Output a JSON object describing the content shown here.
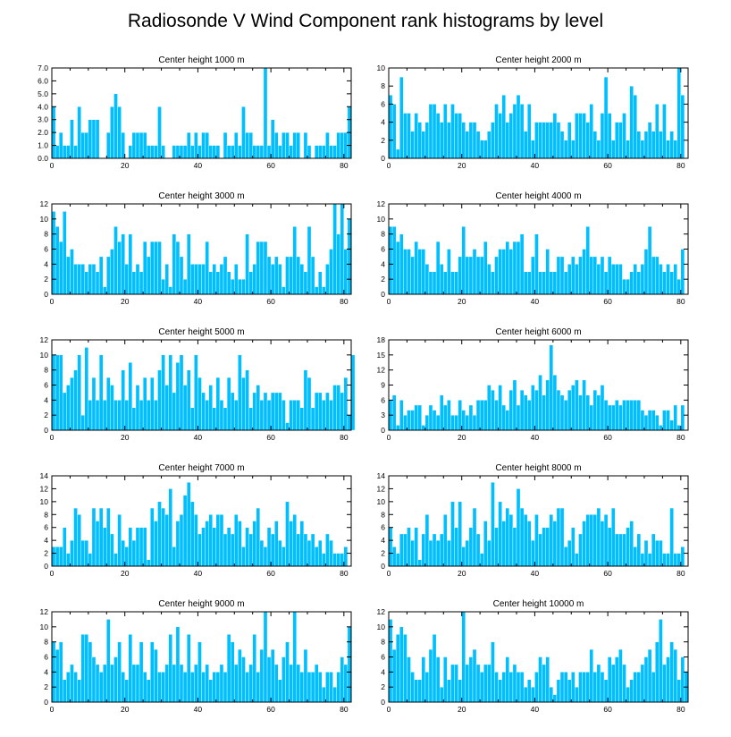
{
  "title": "Radiosonde V Wind Component rank histograms by level",
  "chart_data": [
    {
      "type": "bar",
      "title": "Center height 1000 m",
      "xlim": [
        0,
        82
      ],
      "xticks": [
        0,
        20,
        40,
        60,
        80
      ],
      "ylim": [
        0,
        7
      ],
      "yticks": [
        0,
        1,
        2,
        3,
        4,
        5,
        6,
        7
      ],
      "ytick_labels": [
        "0.0",
        "1.0",
        "2.0",
        "3.0",
        "4.0",
        "5.0",
        "6.0",
        "7.0"
      ],
      "values": [
        4,
        1,
        2,
        1,
        1,
        3,
        1,
        4,
        2,
        2,
        3,
        3,
        3,
        0,
        0,
        2,
        4,
        5,
        4,
        2,
        0,
        1,
        2,
        2,
        2,
        2,
        1,
        1,
        1,
        4,
        1,
        0,
        0,
        1,
        1,
        1,
        1,
        2,
        1,
        2,
        1,
        2,
        2,
        1,
        1,
        1,
        0,
        2,
        1,
        1,
        2,
        1,
        4,
        2,
        2,
        1,
        1,
        1,
        7,
        1,
        3,
        2,
        1,
        2,
        2,
        1,
        2,
        2,
        0,
        2,
        1,
        0,
        1,
        1,
        1,
        2,
        1,
        1,
        2,
        2,
        2,
        4
      ]
    },
    {
      "type": "bar",
      "title": "Center height 2000 m",
      "xlim": [
        0,
        82
      ],
      "xticks": [
        0,
        20,
        40,
        60,
        80
      ],
      "ylim": [
        0,
        10
      ],
      "yticks": [
        0,
        2,
        4,
        6,
        8,
        10
      ],
      "values": [
        7,
        6,
        1,
        9,
        5,
        5,
        3,
        5,
        4,
        3,
        4,
        6,
        6,
        5,
        4,
        6,
        4,
        6,
        5,
        5,
        4,
        3,
        4,
        4,
        3,
        2,
        2,
        3,
        4,
        6,
        5,
        7,
        4,
        5,
        6,
        7,
        6,
        3,
        6,
        2,
        4,
        4,
        4,
        4,
        4,
        5,
        4,
        3,
        2,
        4,
        2,
        5,
        5,
        5,
        4,
        6,
        3,
        2,
        5,
        9,
        5,
        2,
        4,
        4,
        5,
        2,
        8,
        7,
        3,
        2,
        3,
        4,
        3,
        6,
        3,
        6,
        2,
        3,
        2,
        10,
        7
      ]
    },
    {
      "type": "bar",
      "title": "Center height 3000 m",
      "xlim": [
        0,
        82
      ],
      "xticks": [
        0,
        20,
        40,
        60,
        80
      ],
      "ylim": [
        0,
        12
      ],
      "yticks": [
        0,
        2,
        4,
        6,
        8,
        10,
        12
      ],
      "values": [
        11,
        9,
        7,
        11,
        5,
        6,
        4,
        4,
        4,
        3,
        4,
        4,
        3,
        5,
        1,
        5,
        6,
        9,
        7,
        8,
        4,
        8,
        3,
        4,
        3,
        7,
        5,
        7,
        7,
        7,
        2,
        4,
        1,
        8,
        7,
        5,
        2,
        8,
        4,
        4,
        4,
        4,
        7,
        3,
        4,
        3,
        4,
        5,
        3,
        2,
        4,
        2,
        2,
        8,
        3,
        4,
        7,
        7,
        7,
        5,
        4,
        5,
        4,
        1,
        5,
        5,
        9,
        5,
        4,
        3,
        9,
        5,
        1,
        3,
        1,
        4,
        6,
        12,
        8,
        12,
        6,
        10
      ]
    },
    {
      "type": "bar",
      "title": "Center height 4000 m",
      "xlim": [
        0,
        82
      ],
      "xticks": [
        0,
        20,
        40,
        60,
        80
      ],
      "ylim": [
        0,
        12
      ],
      "yticks": [
        0,
        2,
        4,
        6,
        8,
        10,
        12
      ],
      "values": [
        9,
        9,
        7,
        8,
        6,
        6,
        5,
        7,
        6,
        6,
        4,
        3,
        3,
        7,
        4,
        3,
        6,
        3,
        3,
        5,
        9,
        5,
        5,
        6,
        5,
        5,
        7,
        4,
        3,
        5,
        6,
        6,
        7,
        6,
        7,
        7,
        8,
        3,
        3,
        5,
        8,
        3,
        3,
        6,
        3,
        3,
        5,
        5,
        3,
        4,
        5,
        4,
        5,
        6,
        9,
        5,
        5,
        4,
        5,
        3,
        5,
        4,
        4,
        4,
        2,
        2,
        3,
        4,
        3,
        4,
        6,
        9,
        5,
        5,
        4,
        3,
        4,
        3,
        4,
        2,
        6
      ]
    },
    {
      "type": "bar",
      "title": "Center height 5000 m",
      "xlim": [
        0,
        82
      ],
      "xticks": [
        0,
        20,
        40,
        60,
        80
      ],
      "ylim": [
        0,
        12
      ],
      "yticks": [
        0,
        2,
        4,
        6,
        8,
        10,
        12
      ],
      "values": [
        10,
        10,
        10,
        5,
        6,
        7,
        8,
        10,
        2,
        11,
        4,
        7,
        4,
        10,
        4,
        7,
        6,
        4,
        4,
        8,
        4,
        9,
        3,
        6,
        4,
        7,
        4,
        7,
        4,
        8,
        10,
        6,
        10,
        5,
        9,
        10,
        6,
        8,
        3,
        10,
        7,
        5,
        4,
        6,
        3,
        7,
        4,
        3,
        7,
        5,
        4,
        10,
        7,
        8,
        3,
        5,
        6,
        4,
        5,
        4,
        5,
        5,
        5,
        4,
        1,
        4,
        4,
        4,
        3,
        8,
        7,
        3,
        5,
        5,
        4,
        5,
        4,
        6,
        6,
        5,
        7,
        2,
        10
      ]
    },
    {
      "type": "bar",
      "title": "Center height 6000 m",
      "xlim": [
        0,
        82
      ],
      "xticks": [
        0,
        20,
        40,
        60,
        80
      ],
      "ylim": [
        0,
        18
      ],
      "yticks": [
        0,
        3,
        6,
        9,
        12,
        15,
        18
      ],
      "values": [
        6,
        7,
        1,
        6,
        3,
        4,
        4,
        5,
        5,
        1,
        3,
        5,
        4,
        3,
        7,
        5,
        6,
        3,
        3,
        6,
        4,
        3,
        5,
        3,
        6,
        6,
        6,
        9,
        8,
        6,
        9,
        5,
        4,
        8,
        10,
        5,
        8,
        7,
        6,
        9,
        8,
        11,
        7,
        10,
        17,
        11,
        8,
        7,
        6,
        8,
        9,
        10,
        7,
        10,
        7,
        5,
        8,
        7,
        9,
        6,
        5,
        5,
        6,
        5,
        6,
        6,
        6,
        6,
        6,
        4,
        3,
        4,
        4,
        3,
        1,
        4,
        4,
        2,
        5,
        1,
        5
      ]
    },
    {
      "type": "bar",
      "title": "Center height 7000 m",
      "xlim": [
        0,
        82
      ],
      "xticks": [
        0,
        20,
        40,
        60,
        80
      ],
      "ylim": [
        0,
        14
      ],
      "yticks": [
        0,
        2,
        4,
        6,
        8,
        10,
        12,
        14
      ],
      "values": [
        3,
        3,
        3,
        6,
        2,
        4,
        9,
        8,
        4,
        4,
        2,
        9,
        7,
        9,
        6,
        9,
        5,
        2,
        8,
        4,
        3,
        6,
        4,
        6,
        6,
        6,
        1,
        9,
        7,
        10,
        9,
        8,
        12,
        3,
        7,
        8,
        11,
        13,
        10,
        8,
        5,
        6,
        7,
        8,
        6,
        8,
        8,
        5,
        6,
        5,
        8,
        7,
        3,
        6,
        5,
        7,
        9,
        4,
        3,
        6,
        5,
        7,
        4,
        3,
        10,
        7,
        8,
        5,
        7,
        5,
        4,
        5,
        3,
        4,
        2,
        5,
        4,
        2,
        2,
        2,
        3
      ]
    },
    {
      "type": "bar",
      "title": "Center height 8000 m",
      "xlim": [
        0,
        82
      ],
      "xticks": [
        0,
        20,
        40,
        60,
        80
      ],
      "ylim": [
        0,
        14
      ],
      "yticks": [
        0,
        2,
        4,
        6,
        8,
        10,
        12,
        14
      ],
      "values": [
        6,
        3,
        2,
        5,
        5,
        6,
        4,
        6,
        1,
        5,
        8,
        4,
        5,
        4,
        5,
        8,
        4,
        10,
        6,
        10,
        3,
        4,
        6,
        9,
        5,
        2,
        7,
        4,
        13,
        6,
        10,
        7,
        9,
        8,
        6,
        12,
        9,
        8,
        7,
        4,
        8,
        5,
        6,
        6,
        8,
        7,
        9,
        9,
        3,
        4,
        6,
        2,
        5,
        7,
        8,
        8,
        8,
        9,
        7,
        8,
        6,
        9,
        5,
        5,
        5,
        6,
        7,
        3,
        5,
        2,
        4,
        2,
        5,
        4,
        4,
        2,
        2,
        9,
        2,
        2,
        3
      ]
    },
    {
      "type": "bar",
      "title": "Center height 9000 m",
      "xlim": [
        0,
        82
      ],
      "xticks": [
        0,
        20,
        40,
        60,
        80
      ],
      "ylim": [
        0,
        12
      ],
      "yticks": [
        0,
        2,
        4,
        6,
        8,
        10,
        12
      ],
      "values": [
        8,
        7,
        8,
        3,
        4,
        5,
        4,
        3,
        9,
        9,
        8,
        6,
        5,
        4,
        5,
        11,
        5,
        6,
        8,
        4,
        3,
        9,
        5,
        5,
        8,
        4,
        3,
        8,
        7,
        4,
        4,
        5,
        9,
        5,
        10,
        5,
        4,
        9,
        4,
        5,
        8,
        4,
        5,
        3,
        4,
        4,
        5,
        4,
        9,
        8,
        5,
        7,
        6,
        4,
        5,
        9,
        4,
        7,
        12,
        6,
        7,
        5,
        3,
        6,
        8,
        5,
        12,
        5,
        4,
        7,
        4,
        4,
        5,
        4,
        2,
        4,
        4,
        2,
        4,
        6,
        5,
        10
      ]
    },
    {
      "type": "bar",
      "title": "Center height 10000 m",
      "xlim": [
        0,
        82
      ],
      "xticks": [
        0,
        20,
        40,
        60,
        80
      ],
      "ylim": [
        0,
        12
      ],
      "yticks": [
        0,
        2,
        4,
        6,
        8,
        10,
        12
      ],
      "values": [
        11,
        7,
        9,
        10,
        9,
        6,
        4,
        3,
        3,
        6,
        4,
        7,
        9,
        6,
        2,
        6,
        3,
        5,
        5,
        3,
        12,
        5,
        6,
        7,
        5,
        4,
        5,
        5,
        8,
        4,
        3,
        4,
        6,
        4,
        5,
        4,
        4,
        2,
        3,
        2,
        4,
        6,
        5,
        6,
        2,
        1,
        3,
        4,
        4,
        3,
        4,
        2,
        4,
        4,
        4,
        7,
        4,
        5,
        4,
        3,
        6,
        5,
        6,
        7,
        5,
        2,
        3,
        4,
        4,
        5,
        6,
        7,
        4,
        8,
        11,
        5,
        6,
        8,
        7,
        3,
        6,
        4
      ]
    }
  ]
}
